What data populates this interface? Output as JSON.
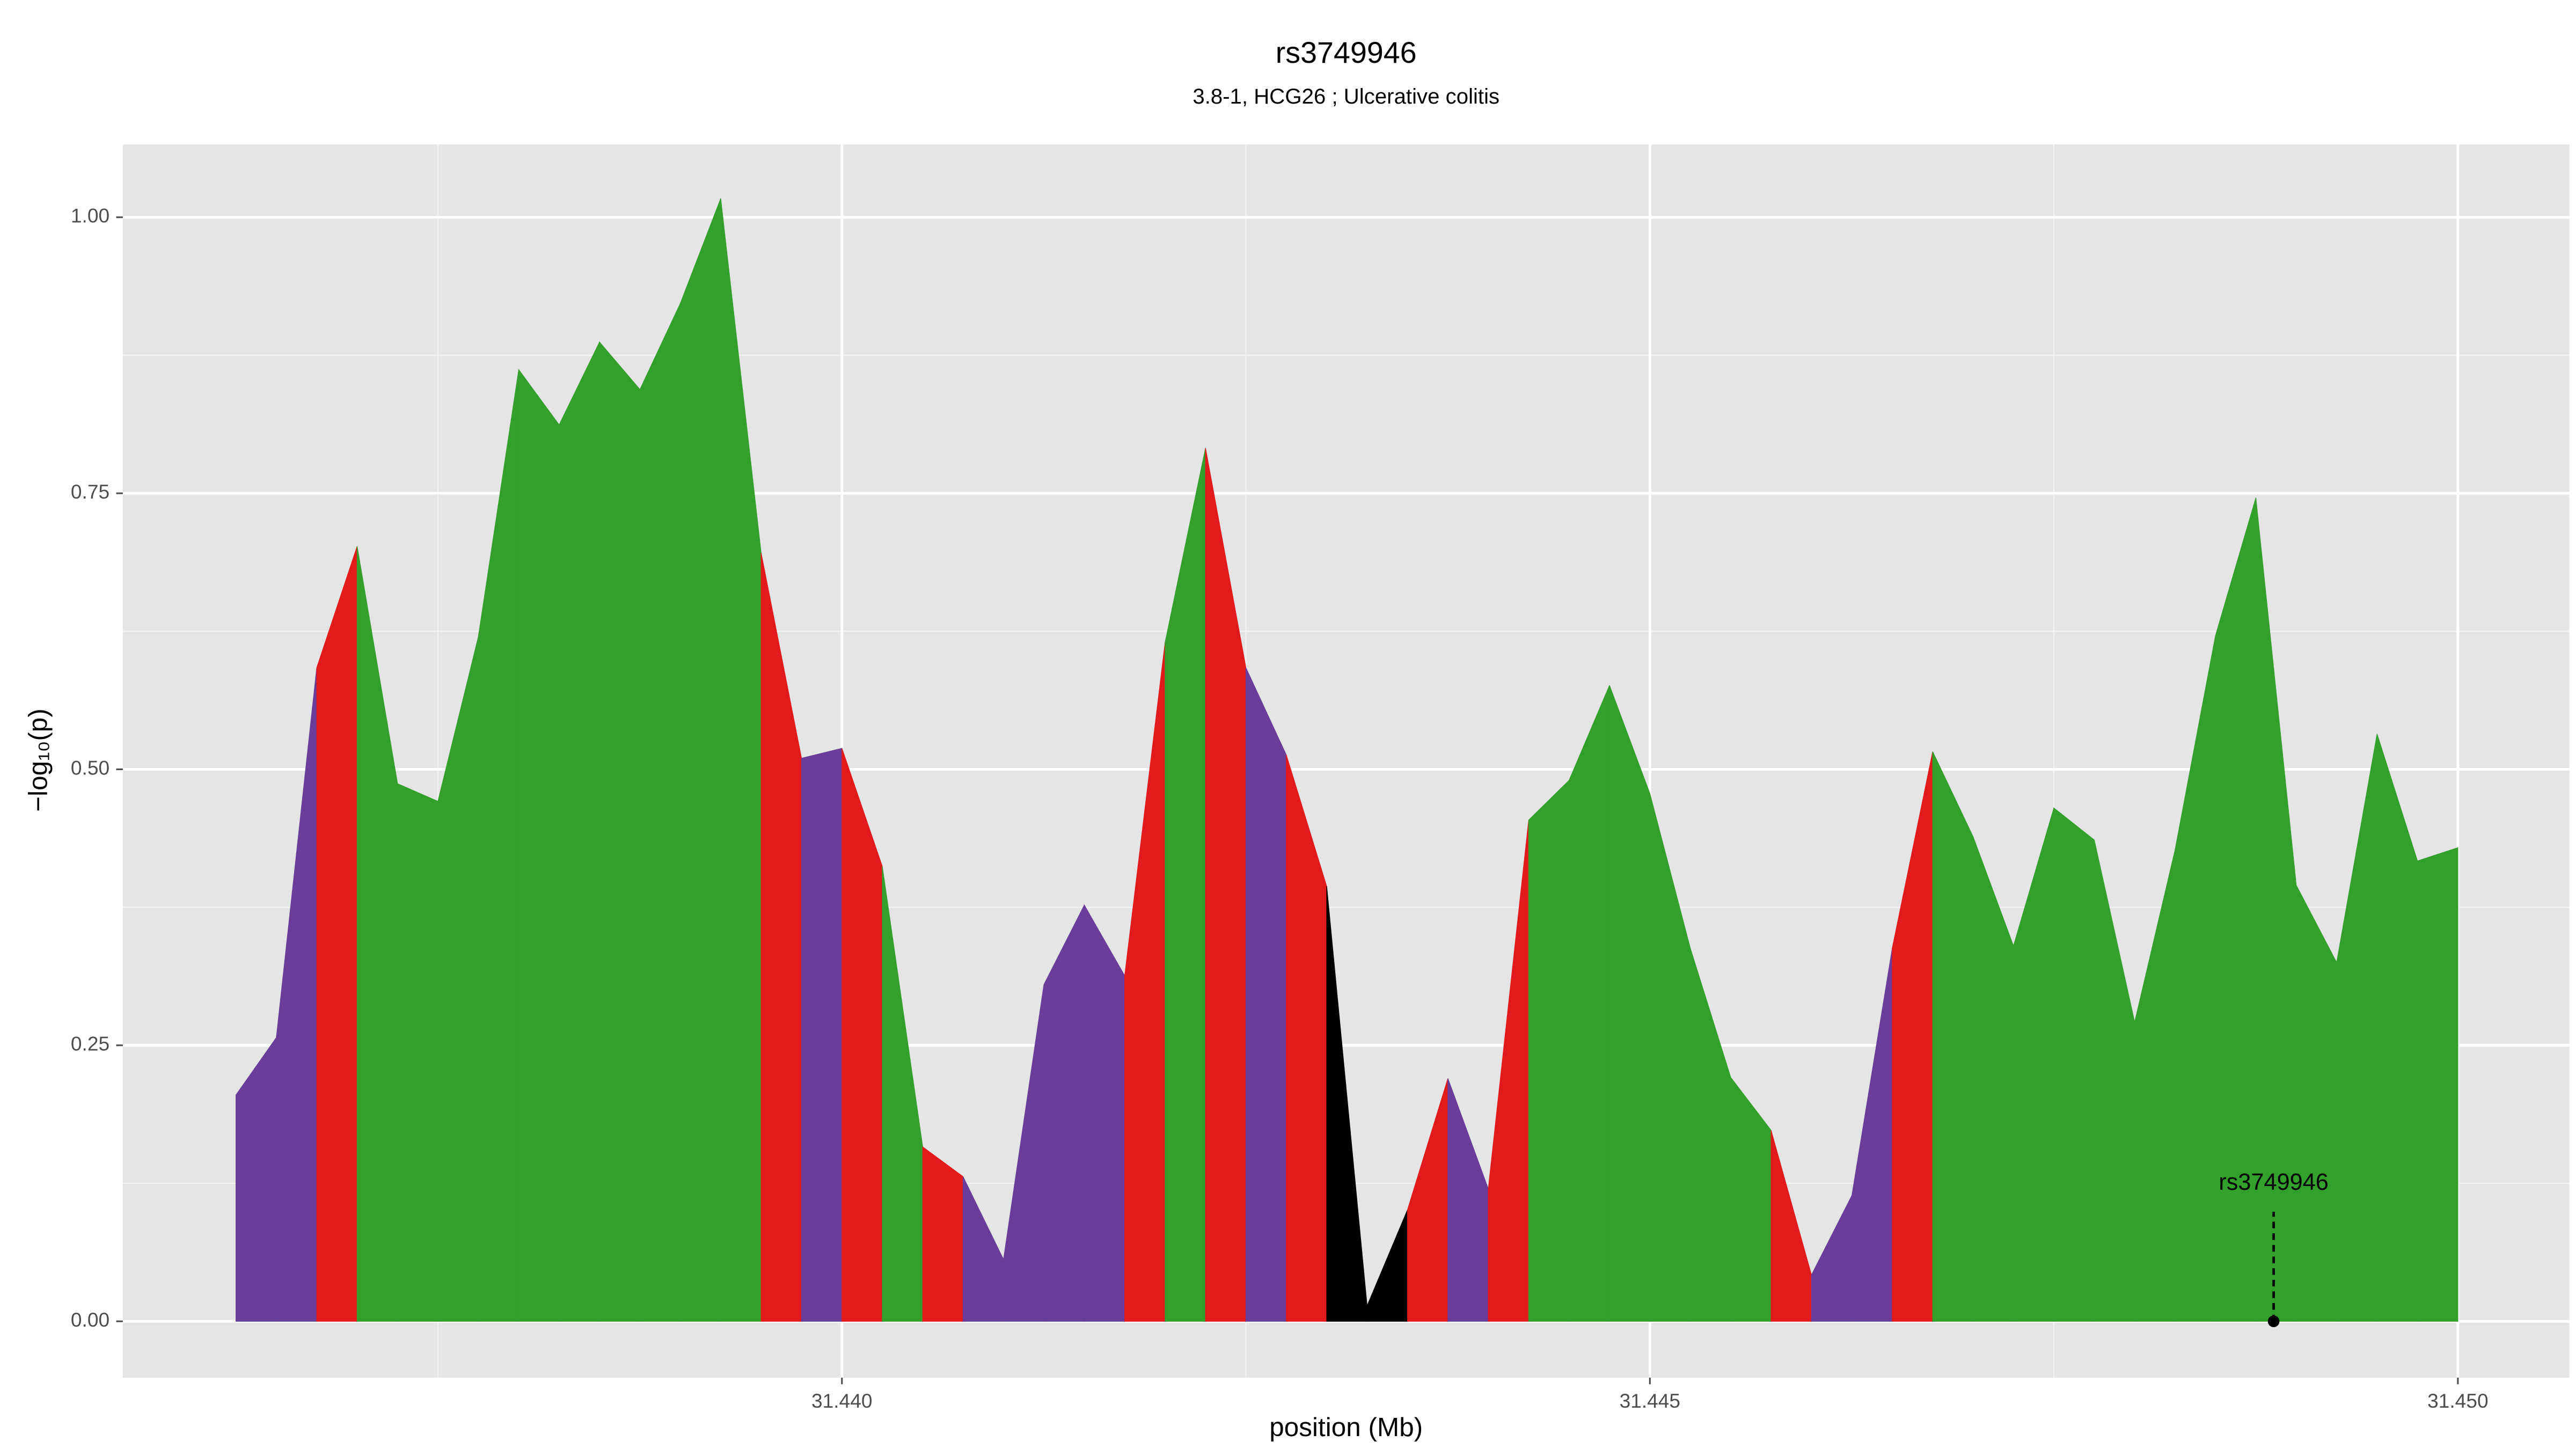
{
  "chart_data": {
    "type": "segmented_area",
    "title": "rs3749946",
    "subtitle": "3.8-1, HCG26 ; Ulcerative colitis",
    "xlabel": "position (Mb)",
    "ylabel": "−log₁₀(p)",
    "x": [
      31.43625,
      31.4365,
      31.43675,
      31.437,
      31.43725,
      31.4375,
      31.43775,
      31.438,
      31.43825,
      31.4385,
      31.43875,
      31.439,
      31.43925,
      31.4395,
      31.43975,
      31.44,
      31.44025,
      31.4405,
      31.44075,
      31.441,
      31.44125,
      31.4415,
      31.44175,
      31.442,
      31.44225,
      31.4425,
      31.44275,
      31.443,
      31.44325,
      31.4435,
      31.44375,
      31.444,
      31.44425,
      31.4445,
      31.44475,
      31.445,
      31.44525,
      31.4455,
      31.44575,
      31.446,
      31.44625,
      31.4465,
      31.44675,
      31.447,
      31.44725,
      31.4475,
      31.44775,
      31.448,
      31.44825,
      31.4485,
      31.44875,
      31.449,
      31.44925,
      31.4495,
      31.44975,
      31.45
    ],
    "series": [
      {
        "values": [
          0.205,
          0.257,
          0.592,
          0.702,
          0.487,
          0.471,
          0.62,
          0.862,
          0.812,
          0.887,
          0.844,
          0.922,
          1.017,
          0.696,
          0.51,
          0.519,
          0.412,
          0.158,
          0.131,
          0.056,
          0.305,
          0.377,
          0.313,
          0.615,
          0.791,
          0.592,
          0.513,
          0.394,
          0.014,
          0.101,
          0.22,
          0.12,
          0.454,
          0.49,
          0.576,
          0.478,
          0.338,
          0.221,
          0.173,
          0.042,
          0.114,
          0.338,
          0.516,
          0.439,
          0.34,
          0.465,
          0.436,
          0.271,
          0.427,
          0.621,
          0.746,
          0.395,
          0.325,
          0.532,
          0.417,
          0.429
        ],
        "segment_colors": [
          "#6a3d9a",
          "#6a3d9a",
          "#e31a1c",
          "#33a02c",
          "#33a02c",
          "#33a02c",
          "#33a02c",
          "#33a02c",
          "#33a02c",
          "#33a02c",
          "#33a02c",
          "#33a02c",
          "#33a02c",
          "#e31a1c",
          "#6a3d9a",
          "#e31a1c",
          "#33a02c",
          "#e31a1c",
          "#6a3d9a",
          "#6a3d9a",
          "#6a3d9a",
          "#6a3d9a",
          "#e31a1c",
          "#33a02c",
          "#e31a1c",
          "#6a3d9a",
          "#e31a1c",
          "#000000",
          "#000000",
          "#e31a1c",
          "#6a3d9a",
          "#e31a1c",
          "#33a02c",
          "#33a02c",
          "#33a02c",
          "#33a02c",
          "#33a02c",
          "#33a02c",
          "#e31a1c",
          "#6a3d9a",
          "#6a3d9a",
          "#e31a1c",
          "#33a02c",
          "#33a02c",
          "#33a02c",
          "#33a02c",
          "#33a02c",
          "#33a02c",
          "#33a02c",
          "#33a02c",
          "#33a02c",
          "#33a02c",
          "#33a02c",
          "#33a02c",
          "#33a02c"
        ]
      }
    ],
    "annotations": [
      {
        "text": "rs3749946",
        "x": 31.44886,
        "y": 0
      }
    ],
    "xlim": [
      31.43555,
      31.45069
    ],
    "ylim": [
      -0.051,
      1.066
    ],
    "xticks": [
      {
        "value": 31.44,
        "label": "31.440"
      },
      {
        "value": 31.445,
        "label": "31.445"
      },
      {
        "value": 31.45,
        "label": "31.450"
      }
    ],
    "xminor": [
      31.4375,
      31.4425,
      31.4475
    ],
    "yticks": [
      {
        "value": 0,
        "label": "0.00"
      },
      {
        "value": 0.25,
        "label": "0.25"
      },
      {
        "value": 0.5,
        "label": "0.50"
      },
      {
        "value": 0.75,
        "label": "0.75"
      },
      {
        "value": 1,
        "label": "1.00"
      }
    ],
    "yminor": [
      0.125,
      0.375,
      0.625,
      0.875
    ],
    "grid": true
  }
}
